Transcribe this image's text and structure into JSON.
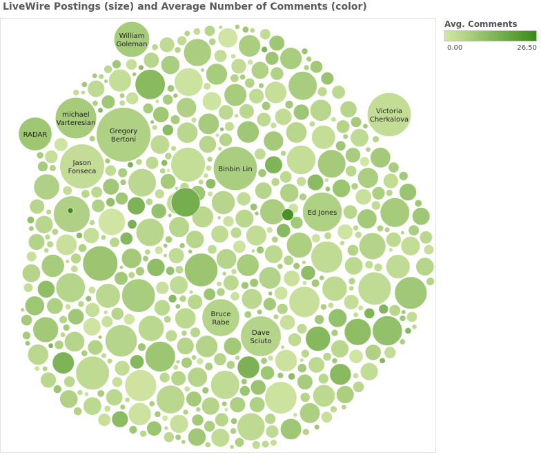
{
  "title": "LiveWire Postings (size) and Average Number of Comments (color)",
  "legend": {
    "title": "Avg. Comments",
    "min_label": "0.00",
    "max_label": "26.50",
    "color_low": "#d4e7a6",
    "color_high": "#3a8a17"
  },
  "chart_data": {
    "type": "packed-bubble",
    "size_measure": "Postings",
    "color_measure": "Avg. Comments",
    "color_range": [
      0.0,
      26.5
    ],
    "labeled_bubbles": [
      {
        "name": "William Goleman",
        "lines": [
          "William",
          "Goleman"
        ],
        "postings": 34,
        "avg_comments": 3.0
      },
      {
        "name": "michael Varteresian",
        "lines": [
          "michael",
          "Varteresian"
        ],
        "postings": 46,
        "avg_comments": 3.0
      },
      {
        "name": "RADAR",
        "lines": [
          "RADAR"
        ],
        "postings": 30,
        "avg_comments": 4.0
      },
      {
        "name": "Gregory Bertoni",
        "lines": [
          "Gregory",
          "Bertoni"
        ],
        "postings": 80,
        "avg_comments": 2.0
      },
      {
        "name": "Jason Fonseca",
        "lines": [
          "Jason",
          "Fonseca"
        ],
        "postings": 54,
        "avg_comments": 0.5
      },
      {
        "name": "Victoria Cherkalova",
        "lines": [
          "Victoria",
          "Cherkalova"
        ],
        "postings": 52,
        "avg_comments": 0.5
      },
      {
        "name": "Binbin Lin",
        "lines": [
          "Binbin Lin"
        ],
        "postings": 52,
        "avg_comments": 2.5
      },
      {
        "name": "Ed Jones",
        "lines": [
          "Ed Jones"
        ],
        "postings": 42,
        "avg_comments": 2.0
      },
      {
        "name": "Bruce Rabe",
        "lines": [
          "Bruce",
          "Rabe"
        ],
        "postings": 38,
        "avg_comments": 1.5
      },
      {
        "name": "Dave Sciuto",
        "lines": [
          "Dave",
          "Sciuto"
        ],
        "postings": 44,
        "avg_comments": 1.5
      }
    ],
    "unlabeled_bubble_count": 520
  }
}
